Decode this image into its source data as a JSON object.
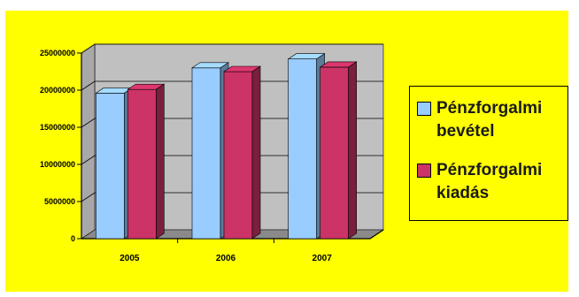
{
  "chart_data": {
    "type": "bar",
    "title": "",
    "xlabel": "",
    "ylabel": "",
    "categories": [
      "2005",
      "2006",
      "2007"
    ],
    "series": [
      {
        "name": "Pénzforgalmi bevétel",
        "values": [
          19600000,
          23000000,
          24200000
        ],
        "color": "#99ccff"
      },
      {
        "name": "Pénzforgalmi kiadás",
        "values": [
          20100000,
          22500000,
          23100000
        ],
        "color": "#cc3366"
      }
    ],
    "ylim": [
      0,
      25000000
    ],
    "yticks": [
      "0",
      "5000000",
      "10000000",
      "15000000",
      "20000000",
      "25000000"
    ],
    "grid": true,
    "legend_position": "right",
    "background": "#ffff00",
    "plot_background": "#c0c0c0"
  }
}
